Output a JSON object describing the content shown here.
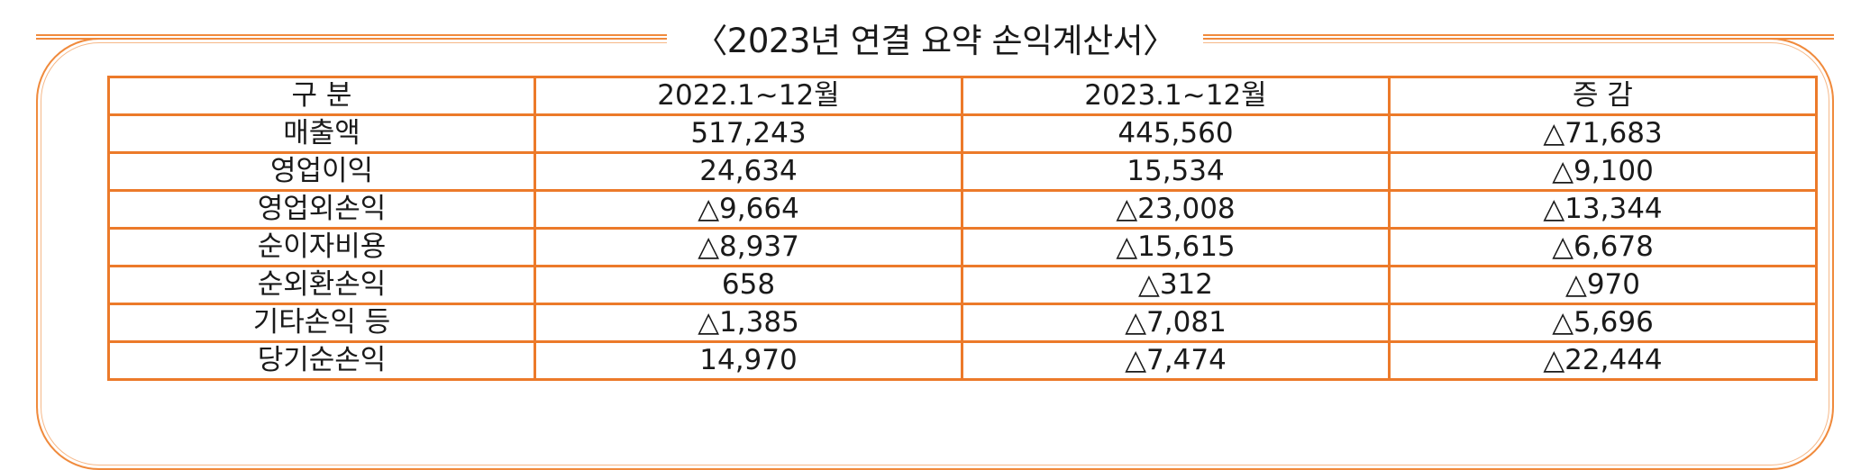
{
  "title": "〈2023년 연결 요약 손익계산서〉",
  "table": {
    "headers": [
      "구 분",
      "2022.1~12월",
      "2023.1~12월",
      "증 감"
    ],
    "rows": [
      [
        "매출액",
        "517,243",
        "445,560",
        "△71,683"
      ],
      [
        "영업이익",
        "24,634",
        "15,534",
        "△9,100"
      ],
      [
        "영업외손익",
        "△9,664",
        "△23,008",
        "△13,344"
      ],
      [
        "순이자비용",
        "△8,937",
        "△15,615",
        "△6,678"
      ],
      [
        "순외환손익",
        "658",
        "△312",
        "△970"
      ],
      [
        "기타손익 등",
        "△1,385",
        "△7,081",
        "△5,696"
      ],
      [
        "당기순손익",
        "14,970",
        "△7,474",
        "△22,444"
      ]
    ]
  },
  "colors": {
    "accent": "#ec7a2a"
  }
}
